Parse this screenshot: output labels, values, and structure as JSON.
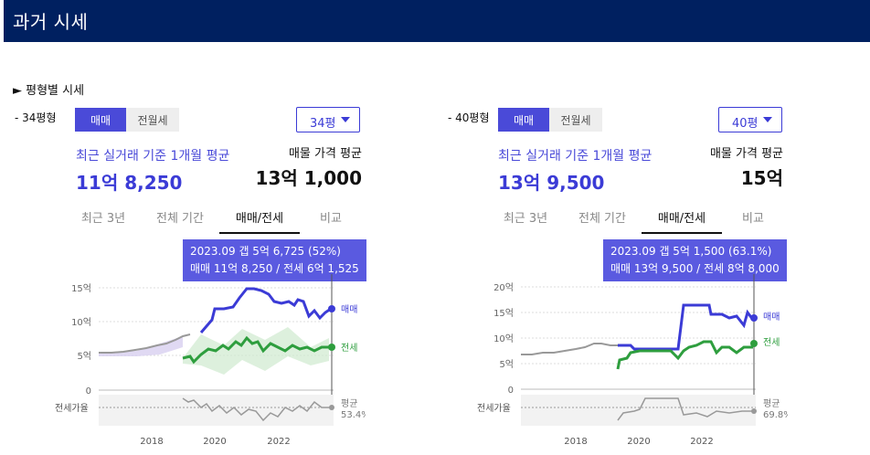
{
  "header": {
    "title": "과거 시세"
  },
  "section": {
    "title": "► 평형별 시세"
  },
  "panels": [
    {
      "size_label": "- 34평형",
      "toggle": {
        "sale": "매매",
        "rent": "전월세"
      },
      "select_value": "34평",
      "caption": "최근 실거래 기준 1개월 평균",
      "avg_price": "11억 8,250",
      "listing_label": "매물 가격 평균",
      "listing_price": "13억 1,000",
      "tabs": [
        "최근 3년",
        "전체 기간",
        "매매/전세",
        "비교"
      ],
      "active_tab": "매매/전세",
      "tooltip_line1": "2023.09  갭 5억 6,725 (52%)",
      "tooltip_line2": "매매 11억 8,250 / 전세 6억 1,525",
      "chart": {
        "y_ticks": [
          "15억",
          "10억",
          "5억",
          "0"
        ],
        "x_ticks": [
          "2018",
          "2020",
          "2022"
        ],
        "series_labels": {
          "sale": "매매",
          "jeonse": "전세"
        },
        "ratio_axis_label": "전세가율",
        "ratio_label": "평균",
        "ratio_value": "53.4%"
      }
    },
    {
      "size_label": "- 40평형",
      "toggle": {
        "sale": "매매",
        "rent": "전월세"
      },
      "select_value": "40평",
      "caption": "최근 실거래 기준 1개월 평균",
      "avg_price": "13억 9,500",
      "listing_label": "매물 가격 평균",
      "listing_price": "15억",
      "tabs": [
        "최근 3년",
        "전체 기간",
        "매매/전세",
        "비교"
      ],
      "active_tab": "매매/전세",
      "tooltip_line1": "2023.09  갭 5억 1,500 (63.1%)",
      "tooltip_line2": "매매 13억 9,500 / 전세 8억 8,000",
      "chart": {
        "y_ticks": [
          "20억",
          "15억",
          "10억",
          "5억",
          "0"
        ],
        "x_ticks": [
          "2018",
          "2020",
          "2022"
        ],
        "series_labels": {
          "sale": "매매",
          "jeonse": "전세"
        },
        "ratio_axis_label": "전세가율",
        "ratio_label": "평균",
        "ratio_value": "69.8%"
      }
    }
  ],
  "colors": {
    "header": "#002060",
    "accent": "#4a4ad8",
    "sale": "#3b3bd6",
    "jeonse": "#2e9e3e",
    "history": "#999999"
  }
}
